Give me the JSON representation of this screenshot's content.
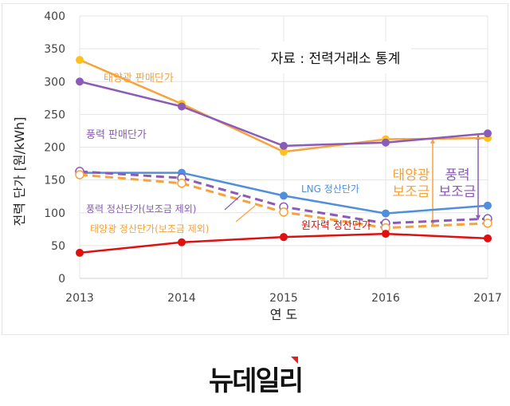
{
  "chart_data": {
    "type": "line",
    "title": "",
    "xlabel": "연 도",
    "ylabel": "전력 단가 [원/kWh]",
    "x": [
      2013,
      2014,
      2015,
      2016,
      2017
    ],
    "ylim": [
      0,
      400
    ],
    "yticks": [
      0,
      50,
      100,
      150,
      200,
      250,
      300,
      350,
      400
    ],
    "grid": true,
    "source_note": "자료 : 전력거래소 통계",
    "series": [
      {
        "name": "태양광 판매단가",
        "color": "#f7a23b",
        "dash": false,
        "marker": "filled",
        "values": [
          333,
          266,
          193,
          212,
          214
        ]
      },
      {
        "name": "풍력 판매단가",
        "color": "#8a5bb8",
        "dash": false,
        "marker": "filled",
        "values": [
          300,
          262,
          202,
          207,
          221
        ]
      },
      {
        "name": "LNG 정산단가",
        "color": "#4f8fdc",
        "dash": false,
        "marker": "filled",
        "values": [
          161,
          161,
          126,
          99,
          111
        ]
      },
      {
        "name": "풍력 정산단가(보조금 제외)",
        "color": "#8a5bb8",
        "dash": true,
        "marker": "open",
        "values": [
          163,
          153,
          109,
          84,
          91
        ]
      },
      {
        "name": "태양광 정산단가(보조금 제외)",
        "color": "#f7a23b",
        "dash": true,
        "marker": "open",
        "values": [
          158,
          145,
          101,
          77,
          84
        ]
      },
      {
        "name": "원자력 정산단가",
        "color": "#e01010",
        "dash": false,
        "marker": "filled",
        "values": [
          39,
          55,
          63,
          68,
          61
        ]
      }
    ],
    "annotations": [
      {
        "text_line1": "태양광",
        "text_line2": "보조금",
        "color": "#f7a23b"
      },
      {
        "text_line1": "풍력",
        "text_line2": "보조금",
        "color": "#8a5bb8"
      }
    ]
  },
  "logo": {
    "text": "뉴데일리"
  }
}
